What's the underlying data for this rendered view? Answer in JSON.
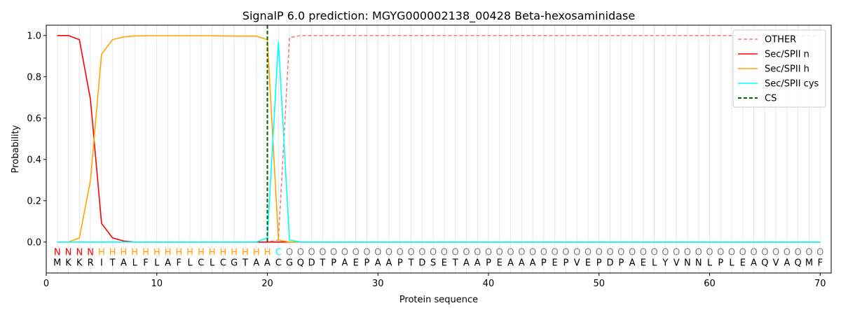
{
  "chart_data": {
    "type": "line",
    "title": "SignalP 6.0 prediction: MGYG000002138_00428 Beta-hexosaminidase",
    "xlabel": "Protein sequence",
    "ylabel": "Probability",
    "xlim": [
      0,
      71
    ],
    "ylim": [
      -0.15,
      1.05
    ],
    "xticks": [
      0,
      10,
      20,
      30,
      40,
      50,
      60,
      70
    ],
    "yticks": [
      0.0,
      0.2,
      0.4,
      0.6,
      0.8,
      1.0
    ],
    "xtick_labels": [
      "0",
      "10",
      "20",
      "30",
      "40",
      "50",
      "60",
      "70"
    ],
    "ytick_labels": [
      "0.0",
      "0.2",
      "0.4",
      "0.6",
      "0.8",
      "1.0"
    ],
    "grid": "vertical lines at each residue",
    "legend_position": "top-right",
    "sequence": [
      "M",
      "K",
      "K",
      "R",
      "I",
      "T",
      "A",
      "L",
      "F",
      "L",
      "A",
      "F",
      "L",
      "C",
      "L",
      "C",
      "G",
      "T",
      "A",
      "A",
      "C",
      "G",
      "Q",
      "D",
      "T",
      "P",
      "A",
      "E",
      "P",
      "A",
      "A",
      "P",
      "T",
      "D",
      "S",
      "E",
      "T",
      "A",
      "A",
      "P",
      "E",
      "A",
      "A",
      "A",
      "P",
      "E",
      "P",
      "V",
      "E",
      "P",
      "D",
      "P",
      "A",
      "E",
      "L",
      "Y",
      "V",
      "N",
      "N",
      "L",
      "P",
      "L",
      "E",
      "A",
      "Q",
      "V",
      "A",
      "Q",
      "M",
      "F"
    ],
    "labels": [
      "N",
      "N",
      "N",
      "N",
      "H",
      "H",
      "H",
      "H",
      "H",
      "H",
      "H",
      "H",
      "H",
      "H",
      "H",
      "H",
      "H",
      "H",
      "H",
      "H",
      "C",
      "O",
      "O",
      "O",
      "O",
      "O",
      "O",
      "O",
      "O",
      "O",
      "O",
      "O",
      "O",
      "O",
      "O",
      "O",
      "O",
      "O",
      "O",
      "O",
      "O",
      "O",
      "O",
      "O",
      "O",
      "O",
      "O",
      "O",
      "O",
      "O",
      "O",
      "O",
      "O",
      "O",
      "O",
      "O",
      "O",
      "O",
      "O",
      "O",
      "O",
      "O",
      "O",
      "O",
      "O",
      "O",
      "O",
      "O",
      "O",
      "O"
    ],
    "label_colors": {
      "N": "#ff0000",
      "H": "#ffa500",
      "C": "#00ffff",
      "O": "#808080"
    },
    "series": [
      {
        "name": "OTHER",
        "color": "#f08080",
        "dash": "dashed",
        "values": [
          0.0,
          0.0,
          0.0,
          0.0,
          0.0,
          0.0,
          0.0,
          0.0,
          0.0,
          0.0,
          0.0,
          0.0,
          0.0,
          0.0,
          0.0,
          0.0,
          0.0,
          0.0,
          0.0,
          0.0,
          0.01,
          0.99,
          1.0,
          1.0,
          1.0,
          1.0,
          1.0,
          1.0,
          1.0,
          1.0,
          1.0,
          1.0,
          1.0,
          1.0,
          1.0,
          1.0,
          1.0,
          1.0,
          1.0,
          1.0,
          1.0,
          1.0,
          1.0,
          1.0,
          1.0,
          1.0,
          1.0,
          1.0,
          1.0,
          1.0,
          1.0,
          1.0,
          1.0,
          1.0,
          1.0,
          1.0,
          1.0,
          1.0,
          1.0,
          1.0,
          1.0,
          1.0,
          1.0,
          1.0,
          1.0,
          1.0,
          1.0,
          1.0,
          1.0,
          1.0
        ]
      },
      {
        "name": "Sec/SPII n",
        "color": "#ff0000",
        "dash": "solid",
        "values": [
          1.0,
          1.0,
          0.98,
          0.69,
          0.09,
          0.02,
          0.005,
          0.0,
          0.0,
          0.0,
          0.0,
          0.0,
          0.0,
          0.0,
          0.0,
          0.0,
          0.0,
          0.0,
          0.0,
          0.0,
          0.0,
          0.0,
          0.0,
          0.0,
          0.0,
          0.0,
          0.0,
          0.0,
          0.0,
          0.0,
          0.0,
          0.0,
          0.0,
          0.0,
          0.0,
          0.0,
          0.0,
          0.0,
          0.0,
          0.0,
          0.0,
          0.0,
          0.0,
          0.0,
          0.0,
          0.0,
          0.0,
          0.0,
          0.0,
          0.0,
          0.0,
          0.0,
          0.0,
          0.0,
          0.0,
          0.0,
          0.0,
          0.0,
          0.0,
          0.0,
          0.0,
          0.0,
          0.0,
          0.0,
          0.0,
          0.0,
          0.0,
          0.0,
          0.0,
          0.0
        ]
      },
      {
        "name": "Sec/SPII h",
        "color": "#ffa500",
        "dash": "solid",
        "values": [
          0.0,
          0.0,
          0.02,
          0.3,
          0.91,
          0.98,
          0.993,
          0.998,
          0.999,
          0.999,
          0.999,
          0.999,
          0.999,
          0.999,
          0.999,
          0.998,
          0.997,
          0.997,
          0.997,
          0.98,
          0.01,
          0.0,
          0.0,
          0.0,
          0.0,
          0.0,
          0.0,
          0.0,
          0.0,
          0.0,
          0.0,
          0.0,
          0.0,
          0.0,
          0.0,
          0.0,
          0.0,
          0.0,
          0.0,
          0.0,
          0.0,
          0.0,
          0.0,
          0.0,
          0.0,
          0.0,
          0.0,
          0.0,
          0.0,
          0.0,
          0.0,
          0.0,
          0.0,
          0.0,
          0.0,
          0.0,
          0.0,
          0.0,
          0.0,
          0.0,
          0.0,
          0.0,
          0.0,
          0.0,
          0.0,
          0.0,
          0.0,
          0.0,
          0.0,
          0.0
        ]
      },
      {
        "name": "Sec/SPII cys",
        "color": "#00ffff",
        "dash": "solid",
        "values": [
          0.0,
          0.0,
          0.0,
          0.0,
          0.0,
          0.0,
          0.0,
          0.0,
          0.0,
          0.0,
          0.0,
          0.0,
          0.0,
          0.0,
          0.0,
          0.0,
          0.0,
          0.0,
          0.0,
          0.02,
          0.97,
          0.01,
          0.0,
          0.0,
          0.0,
          0.0,
          0.0,
          0.0,
          0.0,
          0.0,
          0.0,
          0.0,
          0.0,
          0.0,
          0.0,
          0.0,
          0.0,
          0.0,
          0.0,
          0.0,
          0.0,
          0.0,
          0.0,
          0.0,
          0.0,
          0.0,
          0.0,
          0.0,
          0.0,
          0.0,
          0.0,
          0.0,
          0.0,
          0.0,
          0.0,
          0.0,
          0.0,
          0.0,
          0.0,
          0.0,
          0.0,
          0.0,
          0.0,
          0.0,
          0.0,
          0.0,
          0.0,
          0.0,
          0.0,
          0.0
        ]
      },
      {
        "name": "CS",
        "color": "#006400",
        "dash": "dashed",
        "type": "vline",
        "x": 20
      }
    ]
  }
}
